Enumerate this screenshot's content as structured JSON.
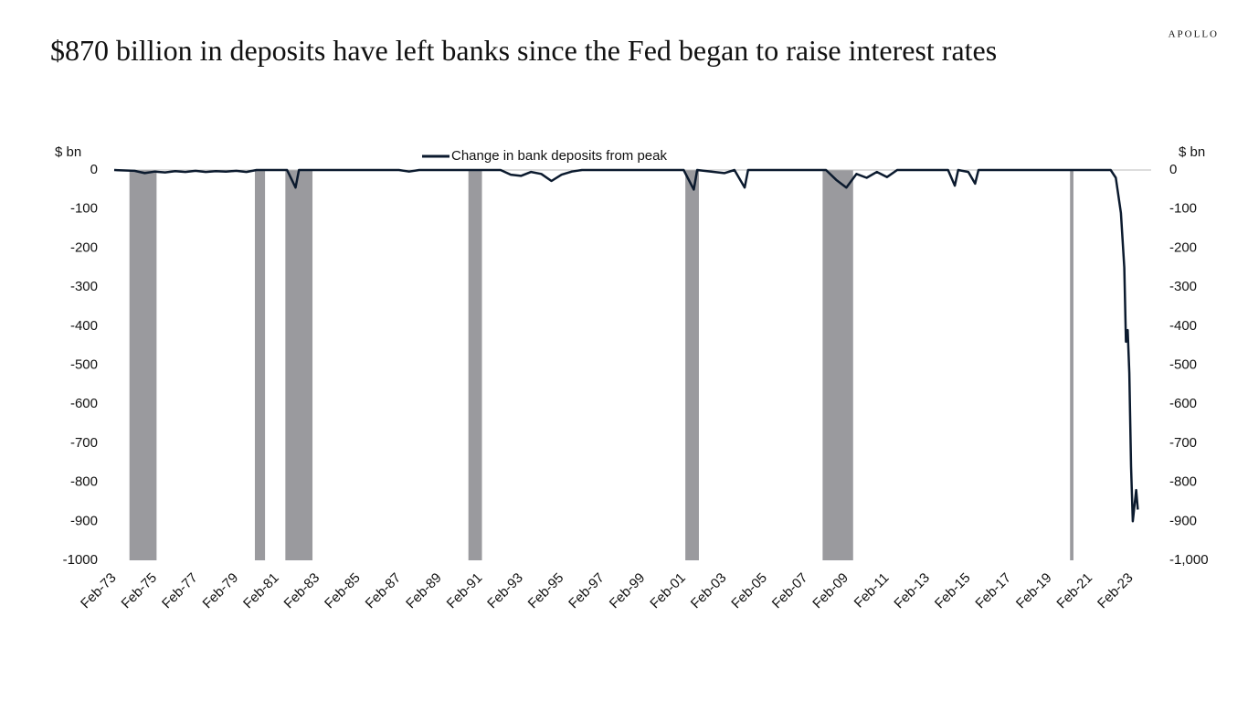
{
  "brand": "APOLLO",
  "chart_data": {
    "type": "line",
    "title": "$870 billion in deposits have left banks since the Fed began to raise interest rates",
    "y_label": "$ bn",
    "y2_label": "$ bn",
    "x": [
      "Feb-73",
      "Feb-74",
      "Aug-74",
      "Feb-75",
      "Aug-75",
      "Feb-76",
      "Aug-76",
      "Feb-77",
      "Aug-77",
      "Feb-78",
      "Aug-78",
      "Feb-79",
      "Aug-79",
      "Feb-80",
      "Aug-81",
      "Jan-82",
      "Mar-82",
      "Feb-87",
      "Aug-87",
      "Feb-88",
      "Feb-92",
      "Aug-92",
      "Feb-93",
      "Aug-93",
      "Feb-94",
      "Aug-94",
      "Feb-95",
      "Aug-95",
      "Feb-96",
      "Feb-01",
      "Aug-01",
      "Oct-01",
      "Feb-03",
      "Aug-03",
      "Feb-04",
      "Apr-04",
      "Feb-08",
      "Aug-08",
      "Feb-09",
      "Aug-09",
      "Feb-10",
      "Aug-10",
      "Feb-11",
      "Aug-11",
      "Feb-14",
      "Jun-14",
      "Aug-14",
      "Feb-15",
      "Jun-15",
      "Aug-15",
      "Feb-22",
      "May-22",
      "Aug-22",
      "Oct-22",
      "Nov-22",
      "Dec-22",
      "Jan-23",
      "Feb-23",
      "Mar-23",
      "May-23",
      "Jun-23"
    ],
    "series": [
      {
        "name": "Change in bank deposits from peak",
        "color": "#0b1a2e",
        "values": [
          0,
          -2,
          -8,
          -4,
          -6,
          -3,
          -5,
          -2,
          -5,
          -3,
          -4,
          -2,
          -5,
          0,
          0,
          -45,
          0,
          0,
          -4,
          0,
          0,
          -12,
          -15,
          -5,
          -10,
          -28,
          -12,
          -4,
          0,
          0,
          -50,
          0,
          -8,
          0,
          -45,
          0,
          0,
          -25,
          -45,
          -10,
          -20,
          -5,
          -18,
          0,
          0,
          -40,
          0,
          -5,
          -35,
          0,
          0,
          -20,
          -110,
          -250,
          -440,
          -410,
          -520,
          -760,
          -900,
          -820,
          -870
        ]
      }
    ],
    "recessions": [
      {
        "start": "Nov-73",
        "end": "Mar-75"
      },
      {
        "start": "Jan-80",
        "end": "Jul-80"
      },
      {
        "start": "Jul-81",
        "end": "Nov-82"
      },
      {
        "start": "Jul-90",
        "end": "Mar-91"
      },
      {
        "start": "Mar-01",
        "end": "Nov-01"
      },
      {
        "start": "Dec-07",
        "end": "Jun-09"
      },
      {
        "start": "Feb-20",
        "end": "Apr-20"
      }
    ],
    "recession_color": "#9a9a9e",
    "xticks": [
      "Feb-73",
      "Feb-75",
      "Feb-77",
      "Feb-79",
      "Feb-81",
      "Feb-83",
      "Feb-85",
      "Feb-87",
      "Feb-89",
      "Feb-91",
      "Feb-93",
      "Feb-95",
      "Feb-97",
      "Feb-99",
      "Feb-01",
      "Feb-03",
      "Feb-05",
      "Feb-07",
      "Feb-09",
      "Feb-11",
      "Feb-13",
      "Feb-15",
      "Feb-17",
      "Feb-19",
      "Feb-21",
      "Feb-23"
    ],
    "ylim": [
      -1000,
      0
    ],
    "yticks": [
      0,
      -100,
      -200,
      -300,
      -400,
      -500,
      -600,
      -700,
      -800,
      -900,
      -1000
    ],
    "y2lim": [
      -1000,
      0
    ],
    "y2ticks": [
      0,
      -100,
      -200,
      -300,
      -400,
      -500,
      -600,
      -700,
      -800,
      -900,
      {
        "value": -1000,
        "label": "-1,000"
      }
    ],
    "legend": "top"
  }
}
